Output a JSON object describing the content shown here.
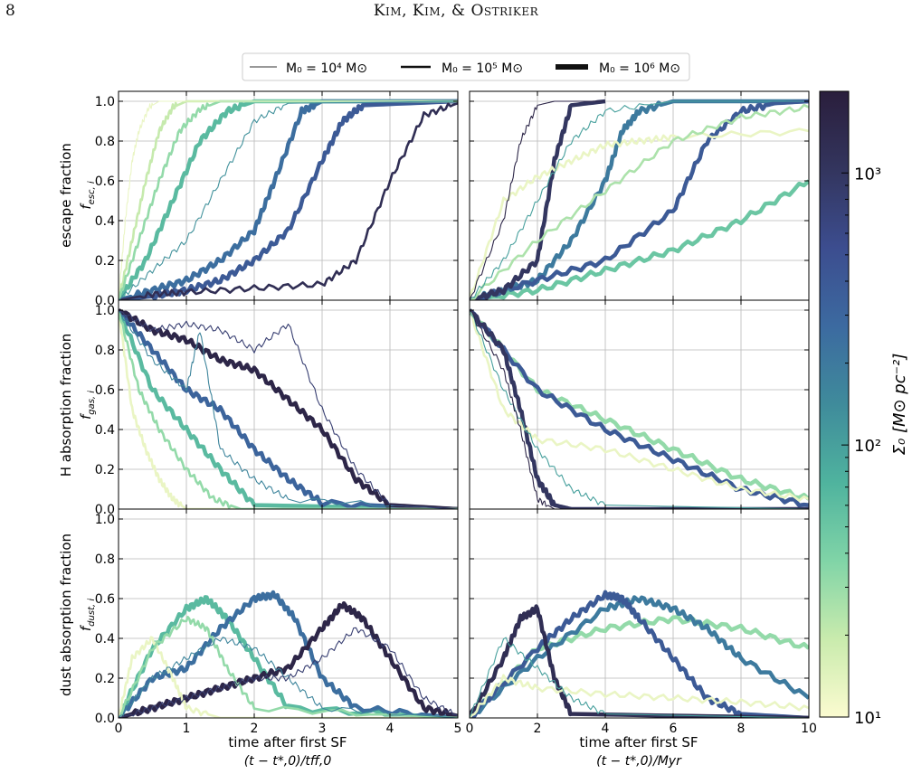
{
  "header": {
    "page_number": "8",
    "running_head": "Kim, Kim, & Ostriker"
  },
  "legend": {
    "items": [
      {
        "label": "M₀ = 10⁴ M⊙",
        "width": "thin"
      },
      {
        "label": "M₀ = 10⁵ M⊙",
        "width": "medium"
      },
      {
        "label": "M₀ = 10⁶ M⊙",
        "width": "thick"
      }
    ]
  },
  "rows": [
    {
      "label": "escape fraction",
      "sublabel": "f",
      "subscript": "esc, i"
    },
    {
      "label": "H absorption fraction",
      "sublabel": "f",
      "subscript": "gas, i"
    },
    {
      "label": "dust absorption fraction",
      "sublabel": "f",
      "subscript": "dust, i"
    }
  ],
  "left_xaxis": {
    "label_line1": "time after first SF",
    "label_line2": "(t − t*,0)/tff,0",
    "ticks": [
      "0",
      "1",
      "2",
      "3",
      "4",
      "5"
    ],
    "range": [
      0,
      5
    ]
  },
  "right_xaxis": {
    "label_line1": "time after first SF",
    "label_line2": "(t − t*,0)/Myr",
    "ticks": [
      "0",
      "2",
      "4",
      "6",
      "8",
      "10"
    ],
    "range": [
      0,
      10
    ]
  },
  "yticks": [
    "0.0",
    "0.2",
    "0.4",
    "0.6",
    "0.8",
    "1.0"
  ],
  "colorbar": {
    "label": "Σ₀ [M⊙ pc⁻²]",
    "tick_labels": [
      "10¹",
      "10²",
      "10³"
    ],
    "range_log": [
      1,
      3.3
    ],
    "colors": [
      "#fbfbd0",
      "#c9ebad",
      "#80d4a7",
      "#4fb39e",
      "#3f8b9b",
      "#3c6aa0",
      "#3c4d8f",
      "#33355e",
      "#2a1e3c"
    ]
  },
  "chart_data": [
    {
      "type": "line",
      "panel": "escape-left",
      "xlim": [
        0,
        5
      ],
      "ylim": [
        0,
        1.05
      ],
      "xlabel": "time after first SF (t − t*,0)/tff,0",
      "ylabel": "escape fraction f_esc,i",
      "series": [
        {
          "sigma_log": 1.1,
          "w": 2,
          "x": [
            0,
            0.1,
            0.2,
            0.3,
            0.45,
            0.6,
            1.0,
            5
          ],
          "y": [
            0,
            0.4,
            0.7,
            0.85,
            0.97,
            1,
            1,
            1
          ]
        },
        {
          "sigma_log": 1.3,
          "w": 3,
          "x": [
            0,
            0.2,
            0.4,
            0.6,
            0.8,
            1.0,
            5
          ],
          "y": [
            0,
            0.3,
            0.6,
            0.85,
            0.97,
            1,
            1
          ]
        },
        {
          "sigma_log": 1.5,
          "w": 3,
          "x": [
            0,
            0.3,
            0.6,
            0.9,
            1.2,
            1.5,
            5
          ],
          "y": [
            0,
            0.3,
            0.6,
            0.85,
            0.96,
            1,
            1
          ]
        },
        {
          "sigma_log": 1.8,
          "w": 5,
          "x": [
            0,
            0.4,
            0.8,
            1.2,
            1.6,
            2.0,
            5
          ],
          "y": [
            0,
            0.2,
            0.5,
            0.8,
            0.95,
            1,
            1
          ]
        },
        {
          "sigma_log": 2.1,
          "w": 2,
          "x": [
            0,
            0.5,
            1.0,
            1.5,
            2.0,
            2.5,
            5
          ],
          "y": [
            0,
            0.15,
            0.3,
            0.6,
            0.9,
            0.99,
            1
          ]
        },
        {
          "sigma_log": 2.4,
          "w": 5,
          "x": [
            0,
            0.5,
            1.0,
            1.5,
            2.0,
            2.3,
            2.7,
            3.0,
            5
          ],
          "y": [
            0,
            0.05,
            0.1,
            0.2,
            0.35,
            0.6,
            0.95,
            1,
            1
          ]
        },
        {
          "sigma_log": 2.6,
          "w": 5,
          "x": [
            0,
            0.5,
            1.0,
            1.5,
            2.0,
            2.5,
            3.0,
            3.3,
            3.6,
            5
          ],
          "y": [
            0,
            0.02,
            0.05,
            0.1,
            0.2,
            0.35,
            0.7,
            0.9,
            0.98,
            1
          ]
        },
        {
          "sigma_log": 3.1,
          "w": 3,
          "x": [
            0,
            0.5,
            1.0,
            2.0,
            3.0,
            3.5,
            4.0,
            4.5,
            5
          ],
          "y": [
            0,
            0.03,
            0.04,
            0.06,
            0.08,
            0.2,
            0.6,
            0.93,
            0.99
          ]
        }
      ]
    },
    {
      "type": "line",
      "panel": "escape-right",
      "xlim": [
        0,
        10
      ],
      "ylim": [
        0,
        1.05
      ],
      "xlabel": "time after first SF (t − t*,0)/Myr",
      "series": [
        {
          "sigma_log": 1.1,
          "w": 3,
          "x": [
            0,
            1,
            2,
            3,
            4,
            5,
            6,
            10
          ],
          "y": [
            0,
            0.5,
            0.62,
            0.7,
            0.78,
            0.8,
            0.82,
            0.85
          ]
        },
        {
          "sigma_log": 1.4,
          "w": 3,
          "x": [
            0,
            2,
            4,
            6,
            8,
            10
          ],
          "y": [
            0,
            0.3,
            0.55,
            0.8,
            0.92,
            0.97
          ]
        },
        {
          "sigma_log": 1.7,
          "w": 5,
          "x": [
            0,
            2,
            4,
            6,
            8,
            10
          ],
          "y": [
            0,
            0.05,
            0.15,
            0.25,
            0.4,
            0.6
          ]
        },
        {
          "sigma_log": 2.0,
          "w": 2,
          "x": [
            0,
            1,
            2,
            3,
            4,
            6,
            10
          ],
          "y": [
            0,
            0.2,
            0.5,
            0.8,
            0.95,
            1,
            1
          ]
        },
        {
          "sigma_log": 2.3,
          "w": 5,
          "x": [
            0,
            1,
            2,
            3,
            4,
            4.5,
            5,
            6,
            10
          ],
          "y": [
            0,
            0.05,
            0.1,
            0.3,
            0.6,
            0.85,
            0.95,
            1,
            1
          ]
        },
        {
          "sigma_log": 2.6,
          "w": 5,
          "x": [
            0,
            2,
            4,
            6,
            7,
            8,
            9,
            10
          ],
          "y": [
            0,
            0.1,
            0.2,
            0.45,
            0.8,
            0.95,
            0.99,
            1
          ]
        },
        {
          "sigma_log": 3.2,
          "w": 2,
          "x": [
            0,
            1,
            1.5,
            2,
            2.5,
            4
          ],
          "y": [
            0,
            0.4,
            0.8,
            0.98,
            1,
            1
          ]
        },
        {
          "sigma_log": 3.0,
          "w": 5,
          "x": [
            0,
            1,
            2,
            2.5,
            3,
            4
          ],
          "y": [
            0,
            0.05,
            0.2,
            0.7,
            0.98,
            1
          ]
        }
      ]
    },
    {
      "type": "line",
      "panel": "gas-left",
      "xlim": [
        0,
        5
      ],
      "ylim": [
        0,
        1.05
      ],
      "ylabel": "H absorption fraction f_gas,i",
      "series": [
        {
          "sigma_log": 1.1,
          "w": 3,
          "x": [
            0,
            0.2,
            0.4,
            0.6,
            0.8,
            1.0,
            5
          ],
          "y": [
            1,
            0.5,
            0.3,
            0.15,
            0.05,
            0,
            0
          ]
        },
        {
          "sigma_log": 1.5,
          "w": 3,
          "x": [
            0,
            0.3,
            0.6,
            1.0,
            1.4,
            1.8,
            5
          ],
          "y": [
            1,
            0.6,
            0.4,
            0.2,
            0.05,
            0,
            0
          ]
        },
        {
          "sigma_log": 1.8,
          "w": 5,
          "x": [
            0,
            0.5,
            1.0,
            1.5,
            2.0,
            5
          ],
          "y": [
            1,
            0.6,
            0.4,
            0.2,
            0.02,
            0
          ]
        },
        {
          "sigma_log": 2.2,
          "w": 2,
          "x": [
            0,
            0.5,
            1.0,
            1.2,
            1.5,
            2.0,
            2.5,
            5
          ],
          "y": [
            1,
            0.75,
            0.6,
            0.9,
            0.3,
            0.15,
            0.05,
            0
          ]
        },
        {
          "sigma_log": 2.5,
          "w": 5,
          "x": [
            0,
            0.5,
            1.0,
            1.5,
            2.0,
            2.5,
            3.0,
            5
          ],
          "y": [
            1,
            0.8,
            0.6,
            0.5,
            0.3,
            0.15,
            0.03,
            0
          ]
        },
        {
          "sigma_log": 2.9,
          "w": 2,
          "x": [
            0,
            0.5,
            1.0,
            1.5,
            2.0,
            2.5,
            3.0,
            3.5,
            4.0,
            5
          ],
          "y": [
            1,
            0.9,
            0.93,
            0.9,
            0.8,
            0.93,
            0.5,
            0.2,
            0.02,
            0
          ]
        },
        {
          "sigma_log": 3.2,
          "w": 5,
          "x": [
            0,
            0.5,
            1.0,
            1.5,
            2.0,
            2.5,
            3.0,
            3.5,
            4.0,
            5
          ],
          "y": [
            1,
            0.9,
            0.85,
            0.75,
            0.7,
            0.55,
            0.4,
            0.15,
            0.02,
            0
          ]
        }
      ]
    },
    {
      "type": "line",
      "panel": "gas-right",
      "xlim": [
        0,
        10
      ],
      "ylim": [
        0,
        1.05
      ],
      "series": [
        {
          "sigma_log": 1.1,
          "w": 3,
          "x": [
            0,
            1,
            2,
            4,
            6,
            8,
            10
          ],
          "y": [
            1,
            0.5,
            0.35,
            0.3,
            0.2,
            0.1,
            0.05
          ]
        },
        {
          "sigma_log": 1.5,
          "w": 5,
          "x": [
            0,
            2,
            4,
            6,
            8,
            10
          ],
          "y": [
            1,
            0.6,
            0.45,
            0.3,
            0.15,
            0.05
          ]
        },
        {
          "sigma_log": 2.0,
          "w": 2,
          "x": [
            0,
            1,
            2,
            3,
            4,
            10
          ],
          "y": [
            1,
            0.6,
            0.3,
            0.1,
            0.02,
            0
          ]
        },
        {
          "sigma_log": 2.6,
          "w": 5,
          "x": [
            0,
            2,
            4,
            6,
            8,
            10
          ],
          "y": [
            1,
            0.6,
            0.4,
            0.25,
            0.1,
            0.02
          ]
        },
        {
          "sigma_log": 3.0,
          "w": 5,
          "x": [
            0,
            1,
            1.5,
            2,
            2.5,
            3,
            10
          ],
          "y": [
            1,
            0.8,
            0.5,
            0.15,
            0.02,
            0,
            0
          ]
        },
        {
          "sigma_log": 3.2,
          "w": 2,
          "x": [
            0,
            1,
            1.5,
            2,
            2.5,
            10
          ],
          "y": [
            1,
            0.7,
            0.4,
            0.05,
            0,
            0
          ]
        }
      ]
    },
    {
      "type": "line",
      "panel": "dust-left",
      "xlim": [
        0,
        5
      ],
      "ylim": [
        0,
        1.05
      ],
      "ylabel": "dust absorption fraction f_dust,i",
      "xlabel": "time after first SF (t − t*,0)/tff,0",
      "series": [
        {
          "sigma_log": 1.1,
          "w": 3,
          "x": [
            0,
            0.2,
            0.5,
            0.8,
            1.0,
            1.5,
            5
          ],
          "y": [
            0,
            0.3,
            0.4,
            0.2,
            0.05,
            0,
            0
          ]
        },
        {
          "sigma_log": 1.5,
          "w": 3,
          "x": [
            0,
            0.5,
            1.0,
            1.3,
            1.6,
            2.0,
            5
          ],
          "y": [
            0,
            0.35,
            0.5,
            0.45,
            0.25,
            0.05,
            0
          ]
        },
        {
          "sigma_log": 1.8,
          "w": 5,
          "x": [
            0,
            0.5,
            1.0,
            1.3,
            1.6,
            2.0,
            2.5,
            5
          ],
          "y": [
            0,
            0.35,
            0.55,
            0.6,
            0.5,
            0.3,
            0.05,
            0
          ]
        },
        {
          "sigma_log": 2.2,
          "w": 2,
          "x": [
            0,
            0.5,
            1.0,
            1.5,
            2.0,
            2.5,
            3.0,
            5
          ],
          "y": [
            0,
            0.2,
            0.3,
            0.4,
            0.35,
            0.2,
            0.05,
            0
          ]
        },
        {
          "sigma_log": 2.4,
          "w": 5,
          "x": [
            0,
            0.5,
            1.0,
            1.5,
            2.0,
            2.3,
            2.6,
            3.0,
            3.5,
            5
          ],
          "y": [
            0,
            0.2,
            0.25,
            0.45,
            0.6,
            0.62,
            0.5,
            0.2,
            0.05,
            0
          ]
        },
        {
          "sigma_log": 2.9,
          "w": 2,
          "x": [
            0,
            0.5,
            1.0,
            1.5,
            2.0,
            2.5,
            3.0,
            3.5,
            4.0,
            4.5,
            5
          ],
          "y": [
            0,
            0.05,
            0.1,
            0.15,
            0.2,
            0.2,
            0.3,
            0.45,
            0.35,
            0.1,
            0.01
          ]
        },
        {
          "sigma_log": 3.2,
          "w": 5,
          "x": [
            0,
            0.5,
            1.0,
            1.5,
            2.0,
            2.5,
            3.0,
            3.3,
            3.6,
            4.0,
            4.5,
            5
          ],
          "y": [
            0,
            0.05,
            0.1,
            0.15,
            0.2,
            0.25,
            0.45,
            0.57,
            0.5,
            0.3,
            0.05,
            0.01
          ]
        }
      ]
    },
    {
      "type": "line",
      "panel": "dust-right",
      "xlim": [
        0,
        10
      ],
      "ylim": [
        0,
        1.05
      ],
      "xlabel": "time after first SF (t − t*,0)/Myr",
      "series": [
        {
          "sigma_log": 1.1,
          "w": 3,
          "x": [
            0,
            1,
            2,
            4,
            6,
            8,
            10
          ],
          "y": [
            0,
            0.2,
            0.15,
            0.12,
            0.1,
            0.08,
            0.05
          ]
        },
        {
          "sigma_log": 1.5,
          "w": 5,
          "x": [
            0,
            2,
            4,
            6,
            8,
            10
          ],
          "y": [
            0,
            0.35,
            0.45,
            0.5,
            0.45,
            0.35
          ]
        },
        {
          "sigma_log": 2.0,
          "w": 2,
          "x": [
            0,
            1,
            2,
            3,
            4,
            10
          ],
          "y": [
            0,
            0.4,
            0.25,
            0.1,
            0.02,
            0
          ]
        },
        {
          "sigma_log": 2.3,
          "w": 5,
          "x": [
            0,
            2,
            4,
            5,
            6,
            7,
            8,
            10
          ],
          "y": [
            0,
            0.3,
            0.55,
            0.6,
            0.55,
            0.45,
            0.3,
            0.1
          ]
        },
        {
          "sigma_log": 2.6,
          "w": 5,
          "x": [
            0,
            2,
            3,
            4,
            4.5,
            5,
            6,
            7,
            8,
            10
          ],
          "y": [
            0,
            0.35,
            0.5,
            0.62,
            0.6,
            0.5,
            0.3,
            0.1,
            0.02,
            0
          ]
        },
        {
          "sigma_log": 3.1,
          "w": 5,
          "x": [
            0,
            1,
            1.5,
            2,
            2.5,
            3,
            10
          ],
          "y": [
            0,
            0.3,
            0.5,
            0.55,
            0.2,
            0.02,
            0
          ]
        }
      ]
    }
  ]
}
